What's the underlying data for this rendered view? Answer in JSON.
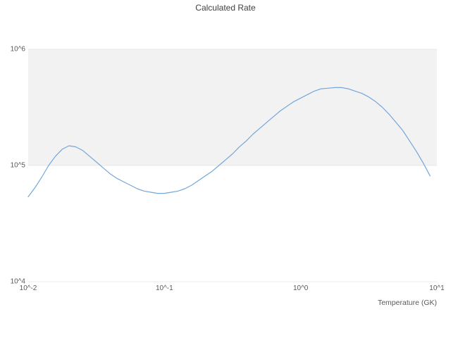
{
  "chart_data": {
    "type": "line",
    "title": "Calculated Rate",
    "xlabel": "Temperature (GK)",
    "ylabel": "",
    "x_scale": "log",
    "y_scale": "log",
    "x_unit": "GK",
    "xlim_log": [
      -2,
      1
    ],
    "ylim_log": [
      4,
      6
    ],
    "x_ticks": [
      "10^-2",
      "10^-1",
      "10^0",
      "10^1"
    ],
    "x_tick_log_values": [
      -2,
      -1,
      0,
      1
    ],
    "y_ticks": [
      "10^4",
      "10^5",
      "10^6"
    ],
    "y_tick_log_values": [
      4,
      5,
      6
    ],
    "grid": "horizontal",
    "legend": "none",
    "band": {
      "y_log_min": 5,
      "y_log_max": 6,
      "color": "#f2f2f2"
    },
    "colors": {
      "line": "#74a7d8",
      "gridline": "#e8e8e8",
      "title_text": "#404040",
      "tick_text": "#595959",
      "background": "#ffffff"
    },
    "series": [
      {
        "name": "Calculated Rate",
        "log10_temperature": [
          -2,
          -1.95,
          -1.9,
          -1.85,
          -1.8,
          -1.75,
          -1.7,
          -1.65,
          -1.6,
          -1.55,
          -1.5,
          -1.45,
          -1.4,
          -1.35,
          -1.3,
          -1.25,
          -1.2,
          -1.15,
          -1.1,
          -1.05,
          -1,
          -0.95,
          -0.9,
          -0.85,
          -0.8,
          -0.75,
          -0.7,
          -0.65,
          -0.6,
          -0.55,
          -0.5,
          -0.45,
          -0.4,
          -0.35,
          -0.3,
          -0.25,
          -0.2,
          -0.15,
          -0.1,
          -0.05,
          0,
          0.05,
          0.1,
          0.15,
          0.2,
          0.25,
          0.3,
          0.35,
          0.4,
          0.45,
          0.5,
          0.55,
          0.6,
          0.65,
          0.7,
          0.75,
          0.8,
          0.85,
          0.9,
          0.95
        ],
        "log10_rate": [
          4.73,
          4.81,
          4.9,
          5,
          5.08,
          5.14,
          5.17,
          5.16,
          5.13,
          5.08,
          5.03,
          4.98,
          4.93,
          4.89,
          4.86,
          4.83,
          4.8,
          4.78,
          4.77,
          4.76,
          4.76,
          4.77,
          4.78,
          4.8,
          4.83,
          4.87,
          4.91,
          4.95,
          5,
          5.05,
          5.1,
          5.16,
          5.21,
          5.27,
          5.32,
          5.37,
          5.42,
          5.47,
          5.51,
          5.55,
          5.58,
          5.61,
          5.64,
          5.66,
          5.665,
          5.67,
          5.67,
          5.66,
          5.64,
          5.62,
          5.59,
          5.55,
          5.5,
          5.44,
          5.37,
          5.3,
          5.21,
          5.12,
          5.02,
          4.91
        ]
      }
    ],
    "notable_points": {
      "start": {
        "temperature_GK": 0.01,
        "rate": 54000
      },
      "local_max": {
        "temperature_GK": 0.02,
        "rate": 148000
      },
      "local_min": {
        "temperature_GK": 0.1,
        "rate": 58000
      },
      "peak": {
        "temperature_GK": 2.0,
        "rate": 468000
      },
      "end": {
        "temperature_GK": 9.0,
        "rate": 81000
      }
    }
  }
}
